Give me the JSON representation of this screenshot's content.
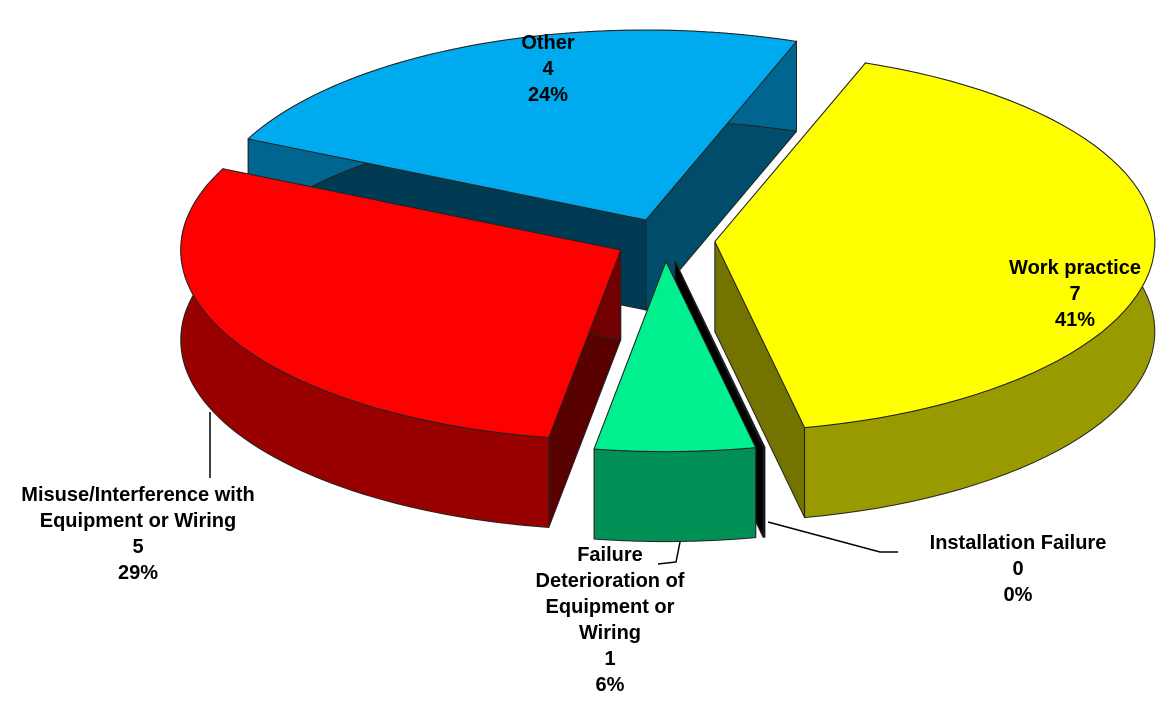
{
  "chart_data": {
    "type": "pie3d",
    "categories": [
      "Work practice",
      "Installation Failure",
      "Failure Deterioration of Equipment or Wiring",
      "Misuse/Interference with Equipment or Wiring",
      "Other"
    ],
    "values": [
      7,
      0,
      1,
      5,
      4
    ],
    "percent_labels": [
      "41%",
      "0%",
      "6%",
      "29%",
      "24%"
    ],
    "colors": [
      "#ffff00",
      "#000000",
      "#00f090",
      "#ff0000",
      "#00aaee"
    ],
    "exploded": true
  }
}
